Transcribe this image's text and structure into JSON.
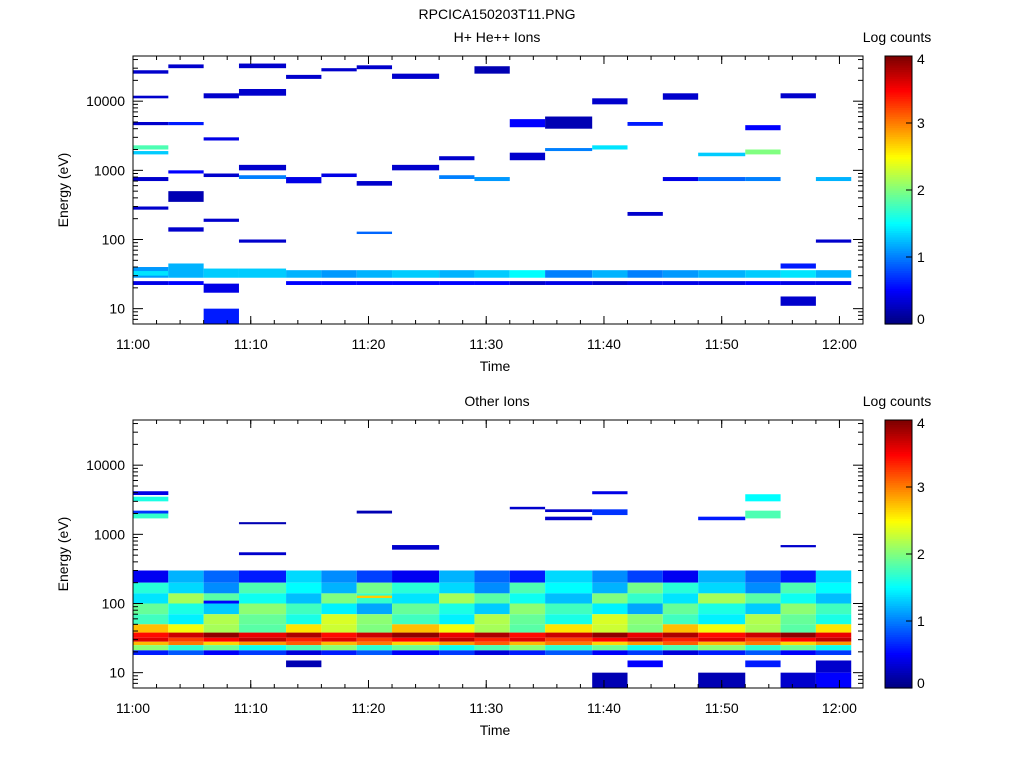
{
  "figure_title": "RPCICA150203T11.PNG",
  "chart_data": [
    {
      "type": "heatmap",
      "title": "H+ He++ Ions",
      "xlabel": "Time",
      "ylabel": "Energy (eV)",
      "colorbar_label": "Log counts",
      "colorbar_ticks": [
        "0",
        "1",
        "2",
        "3",
        "4"
      ],
      "colorbar_range": [
        0,
        4
      ],
      "x_range": [
        "11:00",
        "12:02"
      ],
      "x_ticks": [
        "11:00",
        "11:10",
        "11:20",
        "11:30",
        "11:40",
        "11:50",
        "12:00"
      ],
      "y_scale": "log",
      "y_range": [
        6,
        45000
      ],
      "y_ticks": [
        "10",
        "100",
        "1000",
        "10000"
      ],
      "time_bins": [
        "11:00",
        "11:03",
        "11:06",
        "11:09",
        "11:13",
        "11:16",
        "11:19",
        "11:22",
        "11:26",
        "11:29",
        "11:32",
        "11:35",
        "11:39",
        "11:42",
        "11:45",
        "11:48",
        "11:52",
        "11:55",
        "11:58",
        "12:01"
      ],
      "colormap": "jet",
      "cells": [
        {
          "t": 0,
          "e": [
            40,
            28
          ],
          "v": 1.1
        },
        {
          "t": 0,
          "e": [
            35,
            30
          ],
          "v": 1.4
        },
        {
          "t": 0,
          "e": [
            25,
            22
          ],
          "v": 0.4
        },
        {
          "t": 0,
          "e": [
            2300,
            2000
          ],
          "v": 1.8
        },
        {
          "t": 0,
          "e": [
            1900,
            1700
          ],
          "v": 1.3
        },
        {
          "t": 0,
          "e": [
            5000,
            4500
          ],
          "v": 0.3
        },
        {
          "t": 0,
          "e": [
            12000,
            11000
          ],
          "v": 0.3
        },
        {
          "t": 0,
          "e": [
            28000,
            25000
          ],
          "v": 0.3
        },
        {
          "t": 0,
          "e": [
            800,
            700
          ],
          "v": 0.3
        },
        {
          "t": 0,
          "e": [
            300,
            270
          ],
          "v": 0.3
        },
        {
          "t": 1,
          "e": [
            45,
            28
          ],
          "v": 1.2
        },
        {
          "t": 1,
          "e": [
            25,
            22
          ],
          "v": 0.5
        },
        {
          "t": 1,
          "e": [
            500,
            350
          ],
          "v": 0.2
        },
        {
          "t": 1,
          "e": [
            5000,
            4500
          ],
          "v": 0.6
        },
        {
          "t": 1,
          "e": [
            34000,
            30000
          ],
          "v": 0.3
        },
        {
          "t": 1,
          "e": [
            1000,
            900
          ],
          "v": 0.5
        },
        {
          "t": 1,
          "e": [
            150,
            130
          ],
          "v": 0.3
        },
        {
          "t": 2,
          "e": [
            38,
            28
          ],
          "v": 1.3
        },
        {
          "t": 2,
          "e": [
            23,
            17
          ],
          "v": 0.4
        },
        {
          "t": 2,
          "e": [
            10,
            6
          ],
          "v": 0.6
        },
        {
          "t": 2,
          "e": [
            13000,
            11000
          ],
          "v": 0.3
        },
        {
          "t": 2,
          "e": [
            900,
            800
          ],
          "v": 0.3
        },
        {
          "t": 2,
          "e": [
            3000,
            2700
          ],
          "v": 0.4
        },
        {
          "t": 2,
          "e": [
            200,
            180
          ],
          "v": 0.3
        },
        {
          "t": 3,
          "e": [
            38,
            28
          ],
          "v": 1.3
        },
        {
          "t": 3,
          "e": [
            35000,
            30000
          ],
          "v": 0.3
        },
        {
          "t": 3,
          "e": [
            15000,
            12000
          ],
          "v": 0.3
        },
        {
          "t": 3,
          "e": [
            850,
            750
          ],
          "v": 1.0
        },
        {
          "t": 3,
          "e": [
            1200,
            1000
          ],
          "v": 0.3
        },
        {
          "t": 3,
          "e": [
            100,
            90
          ],
          "v": 0.3
        },
        {
          "t": 4,
          "e": [
            36,
            28
          ],
          "v": 1.2
        },
        {
          "t": 4,
          "e": [
            25,
            22
          ],
          "v": 0.5
        },
        {
          "t": 4,
          "e": [
            24000,
            21000
          ],
          "v": 0.3
        },
        {
          "t": 4,
          "e": [
            800,
            650
          ],
          "v": 0.4
        },
        {
          "t": 5,
          "e": [
            36,
            28
          ],
          "v": 1.1
        },
        {
          "t": 5,
          "e": [
            25,
            22
          ],
          "v": 0.5
        },
        {
          "t": 5,
          "e": [
            30000,
            27000
          ],
          "v": 0.3
        },
        {
          "t": 5,
          "e": [
            900,
            800
          ],
          "v": 0.4
        },
        {
          "t": 6,
          "e": [
            36,
            28
          ],
          "v": 1.2
        },
        {
          "t": 6,
          "e": [
            25,
            22
          ],
          "v": 0.5
        },
        {
          "t": 6,
          "e": [
            33000,
            29000
          ],
          "v": 0.3
        },
        {
          "t": 6,
          "e": [
            130,
            120
          ],
          "v": 0.9
        },
        {
          "t": 6,
          "e": [
            700,
            600
          ],
          "v": 0.3
        },
        {
          "t": 7,
          "e": [
            36,
            28
          ],
          "v": 1.3
        },
        {
          "t": 7,
          "e": [
            25,
            22
          ],
          "v": 0.5
        },
        {
          "t": 7,
          "e": [
            25000,
            21000
          ],
          "v": 0.3
        },
        {
          "t": 7,
          "e": [
            1200,
            1000
          ],
          "v": 0.3
        },
        {
          "t": 8,
          "e": [
            36,
            28
          ],
          "v": 1.2
        },
        {
          "t": 8,
          "e": [
            25,
            22
          ],
          "v": 0.5
        },
        {
          "t": 8,
          "e": [
            850,
            750
          ],
          "v": 1.0
        },
        {
          "t": 8,
          "e": [
            1600,
            1400
          ],
          "v": 0.3
        },
        {
          "t": 9,
          "e": [
            36,
            28
          ],
          "v": 1.3
        },
        {
          "t": 9,
          "e": [
            25,
            22
          ],
          "v": 0.5
        },
        {
          "t": 9,
          "e": [
            32000,
            25000
          ],
          "v": 0.2
        },
        {
          "t": 9,
          "e": [
            800,
            700
          ],
          "v": 1.1
        },
        {
          "t": 10,
          "e": [
            36,
            28
          ],
          "v": 1.5
        },
        {
          "t": 10,
          "e": [
            25,
            22
          ],
          "v": 0.3
        },
        {
          "t": 10,
          "e": [
            5500,
            4200
          ],
          "v": 0.5
        },
        {
          "t": 10,
          "e": [
            1800,
            1400
          ],
          "v": 0.3
        },
        {
          "t": 11,
          "e": [
            36,
            28
          ],
          "v": 1.0
        },
        {
          "t": 11,
          "e": [
            25,
            22
          ],
          "v": 0.4
        },
        {
          "t": 11,
          "e": [
            6000,
            4000
          ],
          "v": 0.2
        },
        {
          "t": 11,
          "e": [
            2100,
            1900
          ],
          "v": 1.0
        },
        {
          "t": 12,
          "e": [
            36,
            28
          ],
          "v": 1.2
        },
        {
          "t": 12,
          "e": [
            25,
            22
          ],
          "v": 0.3
        },
        {
          "t": 12,
          "e": [
            2300,
            2000
          ],
          "v": 1.4
        },
        {
          "t": 12,
          "e": [
            11000,
            9000
          ],
          "v": 0.3
        },
        {
          "t": 13,
          "e": [
            36,
            28
          ],
          "v": 1.0
        },
        {
          "t": 13,
          "e": [
            25,
            22
          ],
          "v": 0.4
        },
        {
          "t": 13,
          "e": [
            5000,
            4400
          ],
          "v": 0.6
        },
        {
          "t": 13,
          "e": [
            250,
            220
          ],
          "v": 0.3
        },
        {
          "t": 14,
          "e": [
            36,
            28
          ],
          "v": 1.1
        },
        {
          "t": 14,
          "e": [
            25,
            22
          ],
          "v": 0.4
        },
        {
          "t": 14,
          "e": [
            13000,
            10500
          ],
          "v": 0.3
        },
        {
          "t": 14,
          "e": [
            800,
            700
          ],
          "v": 0.4
        },
        {
          "t": 15,
          "e": [
            36,
            28
          ],
          "v": 1.2
        },
        {
          "t": 15,
          "e": [
            25,
            22
          ],
          "v": 0.4
        },
        {
          "t": 15,
          "e": [
            1800,
            1600
          ],
          "v": 1.3
        },
        {
          "t": 15,
          "e": [
            800,
            700
          ],
          "v": 0.9
        },
        {
          "t": 16,
          "e": [
            36,
            28
          ],
          "v": 1.3
        },
        {
          "t": 16,
          "e": [
            25,
            22
          ],
          "v": 0.5
        },
        {
          "t": 16,
          "e": [
            2000,
            1700
          ],
          "v": 2.0
        },
        {
          "t": 16,
          "e": [
            800,
            700
          ],
          "v": 1.0
        },
        {
          "t": 16,
          "e": [
            4500,
            3800
          ],
          "v": 0.5
        },
        {
          "t": 17,
          "e": [
            36,
            28
          ],
          "v": 1.4
        },
        {
          "t": 17,
          "e": [
            25,
            22
          ],
          "v": 0.4
        },
        {
          "t": 17,
          "e": [
            45,
            38
          ],
          "v": 0.6
        },
        {
          "t": 17,
          "e": [
            15,
            11
          ],
          "v": 0.3
        },
        {
          "t": 17,
          "e": [
            13000,
            11000
          ],
          "v": 0.3
        },
        {
          "t": 18,
          "e": [
            36,
            28
          ],
          "v": 1.2
        },
        {
          "t": 18,
          "e": [
            25,
            22
          ],
          "v": 0.4
        },
        {
          "t": 18,
          "e": [
            800,
            700
          ],
          "v": 1.2
        },
        {
          "t": 18,
          "e": [
            100,
            90
          ],
          "v": 0.3
        }
      ]
    },
    {
      "type": "heatmap",
      "title": "Other Ions",
      "xlabel": "Time",
      "ylabel": "Energy (eV)",
      "colorbar_label": "Log counts",
      "colorbar_ticks": [
        "0",
        "1",
        "2",
        "3",
        "4"
      ],
      "colorbar_range": [
        0,
        4
      ],
      "x_range": [
        "11:00",
        "12:02"
      ],
      "x_ticks": [
        "11:00",
        "11:10",
        "11:20",
        "11:30",
        "11:40",
        "11:50",
        "12:00"
      ],
      "y_scale": "log",
      "y_range": [
        6,
        45000
      ],
      "y_ticks": [
        "10",
        "100",
        "1000",
        "10000"
      ],
      "time_bins": [
        "11:00",
        "11:03",
        "11:06",
        "11:09",
        "11:13",
        "11:16",
        "11:19",
        "11:22",
        "11:26",
        "11:29",
        "11:32",
        "11:35",
        "11:39",
        "11:42",
        "11:45",
        "11:48",
        "11:52",
        "11:55",
        "11:58",
        "12:01"
      ],
      "colormap": "jet",
      "cells": [
        {
          "t": 0,
          "e": [
            4200,
            3700
          ],
          "v": 0.4
        },
        {
          "t": 0,
          "e": [
            3500,
            3000
          ],
          "v": 1.6
        },
        {
          "t": 0,
          "e": [
            2200,
            2000
          ],
          "v": 0.7
        },
        {
          "t": 0,
          "e": [
            2000,
            1700
          ],
          "v": 1.7
        },
        {
          "t": 2,
          "e": [
            110,
            100
          ],
          "v": 0.5
        },
        {
          "t": 3,
          "e": [
            1500,
            1400
          ],
          "v": 0.2
        },
        {
          "t": 3,
          "e": [
            550,
            500
          ],
          "v": 0.3
        },
        {
          "t": 4,
          "e": [
            15,
            12
          ],
          "v": 0.2
        },
        {
          "t": 6,
          "e": [
            130,
            120
          ],
          "v": 2.7
        },
        {
          "t": 6,
          "e": [
            2200,
            2000
          ],
          "v": 0.2
        },
        {
          "t": 7,
          "e": [
            700,
            600
          ],
          "v": 0.3
        },
        {
          "t": 10,
          "e": [
            2500,
            2300
          ],
          "v": 0.3
        },
        {
          "t": 11,
          "e": [
            2300,
            2100
          ],
          "v": 0.3
        },
        {
          "t": 11,
          "e": [
            1800,
            1600
          ],
          "v": 0.3
        },
        {
          "t": 12,
          "e": [
            4200,
            3800
          ],
          "v": 0.4
        },
        {
          "t": 12,
          "e": [
            2300,
            1900
          ],
          "v": 0.7
        },
        {
          "t": 12,
          "e": [
            10,
            6
          ],
          "v": 0.2
        },
        {
          "t": 13,
          "e": [
            15,
            12
          ],
          "v": 0.5
        },
        {
          "t": 15,
          "e": [
            1800,
            1600
          ],
          "v": 0.6
        },
        {
          "t": 15,
          "e": [
            10,
            6
          ],
          "v": 0.2
        },
        {
          "t": 16,
          "e": [
            3800,
            3000
          ],
          "v": 1.5
        },
        {
          "t": 16,
          "e": [
            2200,
            1700
          ],
          "v": 1.8
        },
        {
          "t": 16,
          "e": [
            15,
            12
          ],
          "v": 0.6
        },
        {
          "t": 17,
          "e": [
            700,
            650
          ],
          "v": 0.3
        },
        {
          "t": 17,
          "e": [
            10,
            6
          ],
          "v": 0.3
        },
        {
          "t": 18,
          "e": [
            15,
            10
          ],
          "v": 0.3
        },
        {
          "t": 18,
          "e": [
            10,
            6
          ],
          "v": 0.5
        }
      ],
      "low_energy_band": {
        "description_rows_eV": [
          [
            38,
            32
          ],
          [
            32,
            28
          ],
          [
            28,
            25
          ],
          [
            25,
            21
          ],
          [
            21,
            18
          ]
        ],
        "typical_values": [
          3.7,
          3.5,
          2.9,
          1.8,
          0.6
        ]
      }
    }
  ]
}
